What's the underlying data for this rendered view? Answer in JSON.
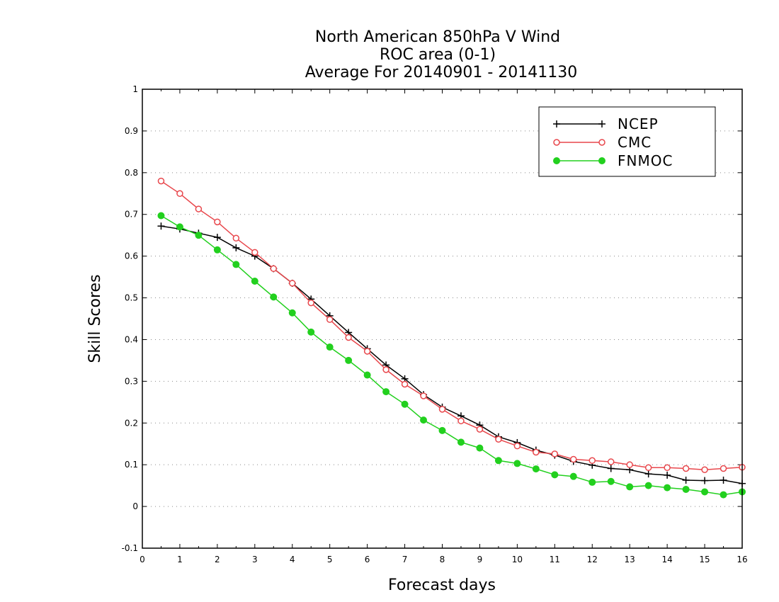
{
  "chart_data": {
    "type": "line",
    "title": [
      "North American 850hPa V Wind",
      "ROC area (0-1)",
      "Average For 20140901 - 20141130"
    ],
    "xlabel": "Forecast days",
    "ylabel": "Skill Scores",
    "xlim": [
      0,
      16
    ],
    "ylim": [
      -0.1,
      1
    ],
    "xticks": [
      0,
      1,
      2,
      3,
      4,
      5,
      6,
      7,
      8,
      9,
      10,
      11,
      12,
      13,
      14,
      15,
      16
    ],
    "yticks": [
      -0.1,
      0,
      0.1,
      0.2,
      0.3,
      0.4,
      0.5,
      0.6,
      0.7,
      0.8,
      0.9,
      1
    ],
    "ytick_labels": [
      "-0.1",
      "0",
      "0.1",
      "0.2",
      "0.3",
      "0.4",
      "0.5",
      "0.6",
      "0.7",
      "0.8",
      "0.9",
      "1"
    ],
    "grid": "horizontal-dotted",
    "legend_position": "top-right",
    "x": [
      0.5,
      1,
      1.5,
      2,
      2.5,
      3,
      3.5,
      4,
      4.5,
      5,
      5.5,
      6,
      6.5,
      7,
      7.5,
      8,
      8.5,
      9,
      9.5,
      10,
      10.5,
      11,
      11.5,
      12,
      12.5,
      13,
      13.5,
      14,
      14.5,
      15,
      15.5,
      16
    ],
    "series": [
      {
        "name": "NCEP",
        "color": "#000000",
        "marker": "plus",
        "values": [
          0.672,
          0.665,
          0.655,
          0.645,
          0.62,
          0.6,
          0.57,
          0.535,
          0.497,
          0.457,
          0.417,
          0.378,
          0.339,
          0.306,
          0.268,
          0.238,
          0.217,
          0.195,
          0.167,
          0.153,
          0.135,
          0.123,
          0.108,
          0.099,
          0.091,
          0.088,
          0.078,
          0.075,
          0.063,
          0.062,
          0.063,
          0.055
        ]
      },
      {
        "name": "CMC",
        "color": "#e8474c",
        "marker": "open-circle",
        "values": [
          0.78,
          0.75,
          0.713,
          0.682,
          0.643,
          0.609,
          0.57,
          0.535,
          0.488,
          0.448,
          0.405,
          0.372,
          0.328,
          0.293,
          0.265,
          0.233,
          0.205,
          0.185,
          0.161,
          0.145,
          0.13,
          0.126,
          0.113,
          0.11,
          0.107,
          0.1,
          0.093,
          0.093,
          0.091,
          0.088,
          0.091,
          0.094
        ]
      },
      {
        "name": "FNMOC",
        "color": "#22d01e",
        "marker": "filled-circle",
        "values": [
          0.697,
          0.67,
          0.65,
          0.615,
          0.58,
          0.54,
          0.502,
          0.464,
          0.418,
          0.382,
          0.35,
          0.315,
          0.275,
          0.245,
          0.207,
          0.182,
          0.154,
          0.14,
          0.11,
          0.103,
          0.09,
          0.076,
          0.072,
          0.058,
          0.06,
          0.047,
          0.05,
          0.045,
          0.041,
          0.035,
          0.028,
          0.035
        ]
      }
    ]
  }
}
